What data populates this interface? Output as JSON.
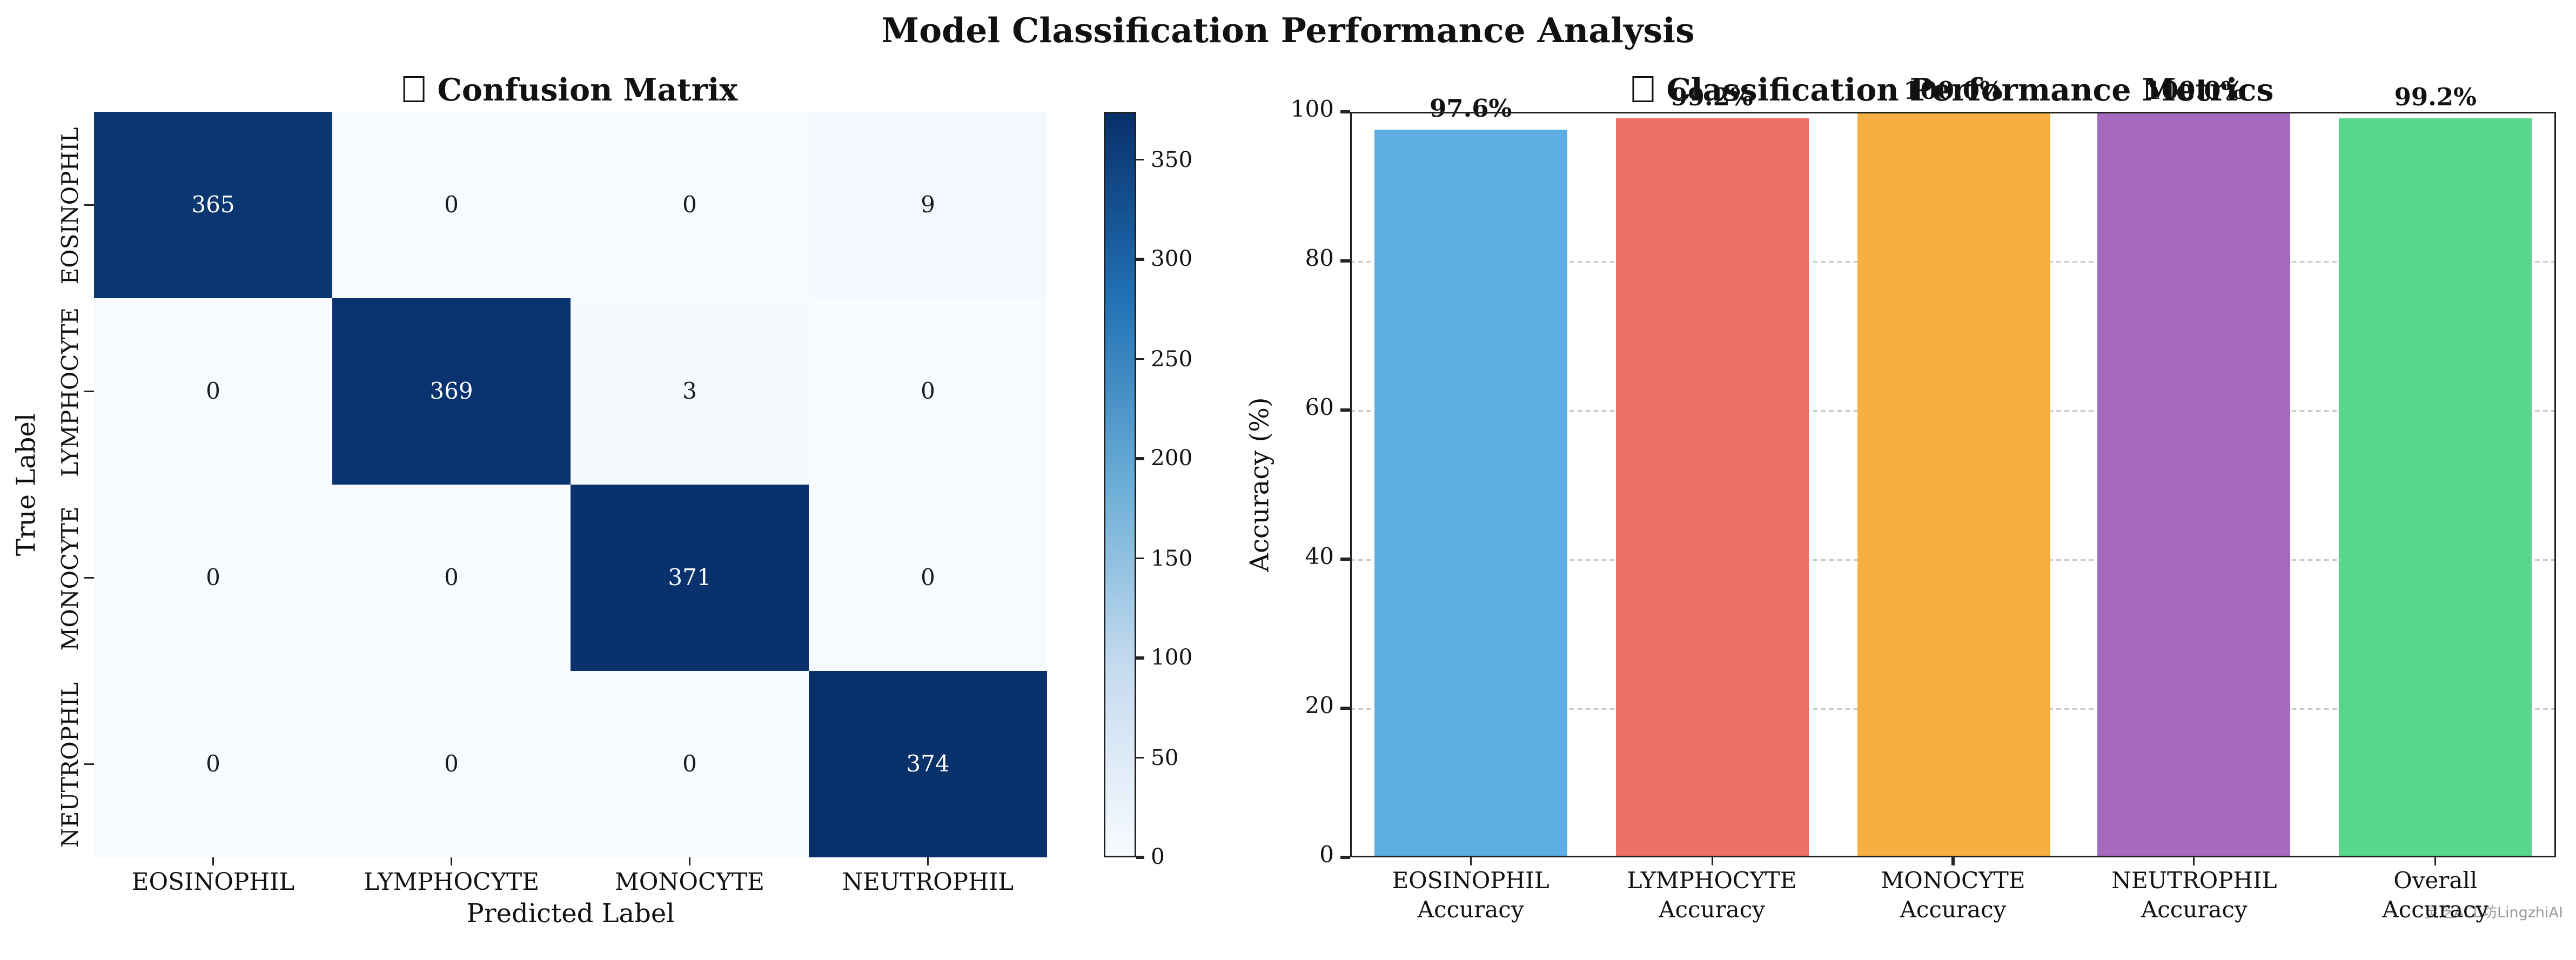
{
  "figure": {
    "title": "Model Classification Performance Analysis",
    "watermark": "灵芝AI工坊LingzhiAI"
  },
  "chart_data": [
    {
      "type": "heatmap",
      "title": "Confusion Matrix",
      "title_has_missing_glyph": true,
      "xlabel": "Predicted Label",
      "ylabel": "True Label",
      "x_categories": [
        "EOSINOPHIL",
        "LYMPHOCYTE",
        "MONOCYTE",
        "NEUTROPHIL"
      ],
      "y_categories": [
        "EOSINOPHIL",
        "LYMPHOCYTE",
        "MONOCYTE",
        "NEUTROPHIL"
      ],
      "matrix": [
        [
          365,
          0,
          0,
          9
        ],
        [
          0,
          369,
          3,
          0
        ],
        [
          0,
          0,
          371,
          0
        ],
        [
          0,
          0,
          0,
          374
        ]
      ],
      "vmin": 0,
      "vmax": 374,
      "colormap": "Blues",
      "colorbar_ticks": [
        0,
        50,
        100,
        150,
        200,
        250,
        300,
        350
      ]
    },
    {
      "type": "bar",
      "title": "Classification Performance Metrics",
      "title_has_missing_glyph": true,
      "ylabel": "Accuracy (%)",
      "ylim": [
        0,
        100
      ],
      "yticks": [
        0,
        20,
        40,
        60,
        80,
        100
      ],
      "categories": [
        "EOSINOPHIL Accuracy",
        "LYMPHOCYTE Accuracy",
        "MONOCYTE Accuracy",
        "NEUTROPHIL Accuracy",
        "Overall Accuracy"
      ],
      "tick_labels": [
        [
          "EOSINOPHIL",
          "Accuracy"
        ],
        [
          "LYMPHOCYTE",
          "Accuracy"
        ],
        [
          "MONOCYTE",
          "Accuracy"
        ],
        [
          "NEUTROPHIL",
          "Accuracy"
        ],
        [
          "Overall",
          "Accuracy"
        ]
      ],
      "values": [
        97.6,
        99.2,
        100.0,
        100.0,
        99.2
      ],
      "bar_value_labels": [
        "97.6%",
        "99.2%",
        "100.0%",
        "100.0%",
        "99.2%"
      ],
      "colors": [
        "#5dade2",
        "#ec7063",
        "#f5b041",
        "#a569bd",
        "#58d68d"
      ],
      "grid": "horizontal-dashed",
      "legend": "none"
    }
  ]
}
